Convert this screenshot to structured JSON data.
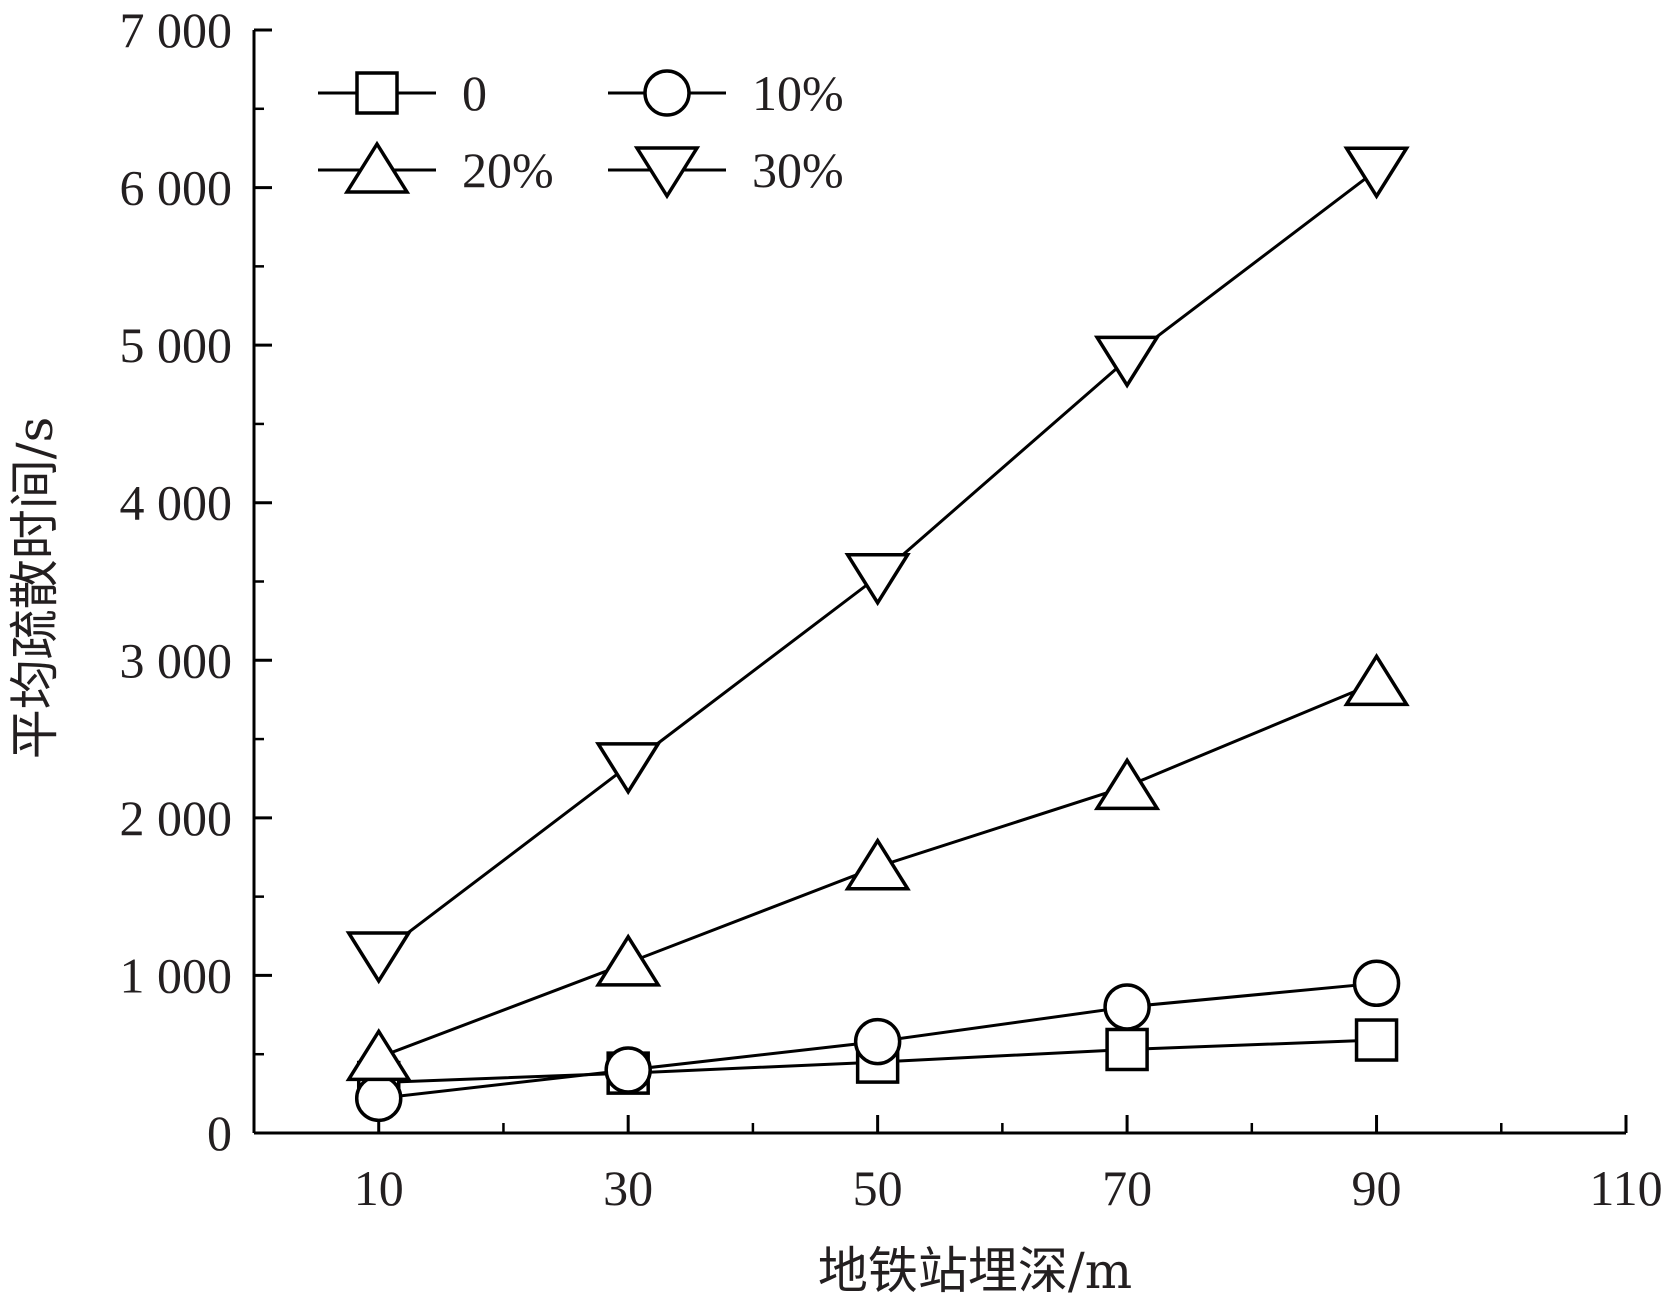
{
  "chart_data": {
    "type": "line",
    "xlabel": "地铁站埋深/m",
    "ylabel": "平均疏散时间/s",
    "x": [
      10,
      30,
      50,
      70,
      90
    ],
    "xlim": [
      0,
      110
    ],
    "ylim": [
      0,
      7000
    ],
    "x_ticks": [
      10,
      30,
      50,
      70,
      90,
      110
    ],
    "x_tick_labels": [
      "10",
      "30",
      "50",
      "70",
      "90",
      "110"
    ],
    "y_ticks": [
      0,
      1000,
      2000,
      3000,
      4000,
      5000,
      6000,
      7000
    ],
    "y_tick_labels": [
      "0",
      "1 000",
      "2 000",
      "3 000",
      "4 000",
      "5 000",
      "6 000",
      "7 000"
    ],
    "grid": false,
    "legend_position": "top-left",
    "line_color": "#000000",
    "series": [
      {
        "name": "0",
        "marker": "square",
        "values": [
          320,
          380,
          450,
          530,
          590
        ]
      },
      {
        "name": "10%",
        "marker": "circle",
        "values": [
          220,
          400,
          580,
          800,
          950
        ]
      },
      {
        "name": "20%",
        "marker": "triangle-up",
        "values": [
          480,
          1080,
          1690,
          2200,
          2860
        ]
      },
      {
        "name": "30%",
        "marker": "triangle-down",
        "values": [
          1130,
          2330,
          3530,
          4910,
          6110
        ]
      }
    ]
  }
}
